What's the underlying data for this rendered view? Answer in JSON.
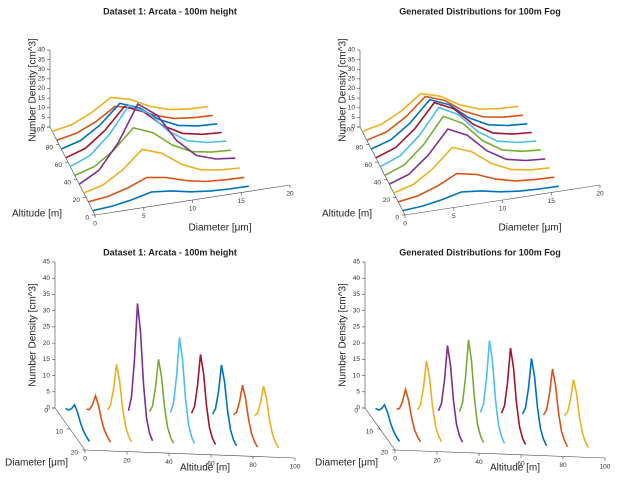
{
  "chart_data": [
    {
      "type": "waterfall3d",
      "view": "diameter-front",
      "title": "Dataset 1: Arcata - 100m height",
      "xlabel": "Diameter [μm]",
      "ylabel": "Altitude [m]",
      "zlabel": "Number Density [cm^3]",
      "xlim": [
        0,
        20
      ],
      "xticks": [
        0,
        5,
        10,
        15,
        20
      ],
      "ylim": [
        0,
        100
      ],
      "yticks": [
        0,
        20,
        40,
        60,
        80,
        100
      ],
      "zlim": [
        0,
        40
      ],
      "zticks": [
        0,
        5,
        10,
        15,
        20,
        25,
        30,
        35,
        40
      ],
      "x": [
        0,
        2,
        4,
        6,
        8,
        10,
        12,
        14,
        16
      ],
      "series": [
        {
          "color": "#0072BD",
          "altitude": 5,
          "values": [
            0,
            0.8,
            2.5,
            5,
            4,
            2,
            0.8,
            0.3,
            0.2
          ]
        },
        {
          "color": "#D95319",
          "altitude": 15,
          "values": [
            0,
            1.2,
            4,
            8,
            6.4,
            3.2,
            1.2,
            0.5,
            0.2
          ]
        },
        {
          "color": "#EDB120",
          "altitude": 25,
          "values": [
            0,
            2.7,
            9,
            18,
            14.4,
            7.2,
            2.7,
            1.1,
            0.5
          ]
        },
        {
          "color": "#7E2F8E",
          "altitude": 35,
          "values": [
            0,
            5.6,
            18.5,
            37,
            29.6,
            14.8,
            5.6,
            2.2,
            1.1
          ]
        },
        {
          "color": "#77AC30",
          "altitude": 45,
          "values": [
            0,
            3,
            10,
            20,
            16,
            8,
            3,
            1.2,
            0.6
          ]
        },
        {
          "color": "#4DBEEE",
          "altitude": 55,
          "values": [
            0,
            4.1,
            13.5,
            27,
            21.6,
            10.8,
            4.1,
            1.6,
            0.8
          ]
        },
        {
          "color": "#A2142F",
          "altitude": 65,
          "values": [
            0,
            3.3,
            11,
            22,
            17.6,
            8.8,
            3.3,
            1.3,
            0.7
          ]
        },
        {
          "color": "#0072BD",
          "altitude": 75,
          "values": [
            0,
            2.9,
            9.5,
            19,
            15.2,
            7.6,
            2.9,
            1.1,
            0.6
          ]
        },
        {
          "color": "#D95319",
          "altitude": 85,
          "values": [
            0,
            2,
            6.5,
            13,
            10.4,
            5.2,
            2,
            0.8,
            0.4
          ]
        },
        {
          "color": "#EDB120",
          "altitude": 95,
          "values": [
            0,
            2,
            6.5,
            13,
            10.4,
            5.2,
            2,
            0.8,
            0.4
          ]
        }
      ]
    },
    {
      "type": "waterfall3d",
      "view": "diameter-front",
      "title": "Generated Distributions for 100m Fog",
      "xlabel": "Diameter [μm]",
      "ylabel": "Altitude [m]",
      "zlabel": "Number Density [cm^3]",
      "xlim": [
        0,
        20
      ],
      "xticks": [
        0,
        5,
        10,
        15,
        20
      ],
      "ylim": [
        0,
        100
      ],
      "yticks": [
        0,
        20,
        40,
        60,
        80,
        100
      ],
      "zlim": [
        0,
        40
      ],
      "zticks": [
        0,
        5,
        10,
        15,
        20,
        25,
        30,
        35,
        40
      ],
      "x": [
        0,
        2,
        4,
        6,
        8,
        10,
        12,
        14,
        16
      ],
      "series": [
        {
          "color": "#0072BD",
          "altitude": 5,
          "values": [
            0,
            0.8,
            2.5,
            5,
            4,
            2,
            0.8,
            0.3,
            0.2
          ]
        },
        {
          "color": "#D95319",
          "altitude": 15,
          "values": [
            0,
            1.5,
            5,
            10,
            8,
            4,
            1.5,
            0.6,
            0.3
          ]
        },
        {
          "color": "#EDB120",
          "altitude": 25,
          "values": [
            0,
            2.9,
            9.5,
            19,
            15.2,
            7.6,
            2.9,
            1.1,
            0.6
          ]
        },
        {
          "color": "#7E2F8E",
          "altitude": 35,
          "values": [
            0,
            3.6,
            12,
            24,
            19.2,
            9.6,
            3.6,
            1.4,
            0.7
          ]
        },
        {
          "color": "#77AC30",
          "altitude": 45,
          "values": [
            0,
            3.9,
            13,
            26,
            20.8,
            10.4,
            3.9,
            1.6,
            0.8
          ]
        },
        {
          "color": "#4DBEEE",
          "altitude": 55,
          "values": [
            0,
            3.9,
            13,
            26,
            20.8,
            10.4,
            3.9,
            1.6,
            0.8
          ]
        },
        {
          "color": "#A2142F",
          "altitude": 65,
          "values": [
            0,
            3.6,
            12,
            24,
            19.2,
            9.6,
            3.6,
            1.4,
            0.7
          ]
        },
        {
          "color": "#0072BD",
          "altitude": 75,
          "values": [
            0,
            3.2,
            10.5,
            21,
            16.8,
            8.4,
            3.2,
            1.3,
            0.6
          ]
        },
        {
          "color": "#D95319",
          "altitude": 85,
          "values": [
            0,
            2.7,
            9,
            18,
            14.4,
            7.2,
            2.7,
            1.1,
            0.5
          ]
        },
        {
          "color": "#EDB120",
          "altitude": 95,
          "values": [
            0,
            2.3,
            7.5,
            15,
            12,
            6,
            2.3,
            0.9,
            0.5
          ]
        }
      ]
    },
    {
      "type": "waterfall3d",
      "view": "altitude-front",
      "title": "Dataset 1: Arcata - 100m height",
      "xlabel": "Diameter [μm]",
      "ylabel": "Altitude [m]",
      "zlabel": "Number Density [cm^3]",
      "xlim": [
        0,
        20
      ],
      "xticks": [
        0,
        10,
        20
      ],
      "ylim": [
        0,
        100
      ],
      "yticks": [
        0,
        20,
        40,
        60,
        80,
        100
      ],
      "zlim": [
        0,
        45
      ],
      "zticks": [
        0,
        5,
        10,
        15,
        20,
        25,
        30,
        35,
        40,
        45
      ],
      "x": [
        0,
        2,
        4,
        6,
        8,
        10,
        12,
        14,
        16
      ],
      "series": [
        {
          "color": "#0072BD",
          "altitude": 5,
          "values": [
            0,
            0.8,
            2.5,
            5,
            4,
            2,
            0.8,
            0.3,
            0.2
          ]
        },
        {
          "color": "#D95319",
          "altitude": 15,
          "values": [
            0,
            1.2,
            4,
            8,
            6.4,
            3.2,
            1.2,
            0.5,
            0.2
          ]
        },
        {
          "color": "#EDB120",
          "altitude": 25,
          "values": [
            0,
            2.7,
            9,
            18,
            14.4,
            7.2,
            2.7,
            1.1,
            0.5
          ]
        },
        {
          "color": "#7E2F8E",
          "altitude": 35,
          "values": [
            0,
            5.6,
            18.5,
            37,
            29.6,
            14.8,
            5.6,
            2.2,
            1.1
          ]
        },
        {
          "color": "#77AC30",
          "altitude": 45,
          "values": [
            0,
            3,
            10,
            20,
            16,
            8,
            3,
            1.2,
            0.6
          ]
        },
        {
          "color": "#4DBEEE",
          "altitude": 55,
          "values": [
            0,
            4.1,
            13.5,
            27,
            21.6,
            10.8,
            4.1,
            1.6,
            0.8
          ]
        },
        {
          "color": "#A2142F",
          "altitude": 65,
          "values": [
            0,
            3.3,
            11,
            22,
            17.6,
            8.8,
            3.3,
            1.3,
            0.7
          ]
        },
        {
          "color": "#0072BD",
          "altitude": 75,
          "values": [
            0,
            2.9,
            9.5,
            19,
            15.2,
            7.6,
            2.9,
            1.1,
            0.6
          ]
        },
        {
          "color": "#D95319",
          "altitude": 85,
          "values": [
            0,
            2,
            6.5,
            13,
            10.4,
            5.2,
            2,
            0.8,
            0.4
          ]
        },
        {
          "color": "#EDB120",
          "altitude": 95,
          "values": [
            0,
            2,
            6.5,
            13,
            10.4,
            5.2,
            2,
            0.8,
            0.4
          ]
        }
      ]
    },
    {
      "type": "waterfall3d",
      "view": "altitude-front",
      "title": "Generated Distributions for 100m Fog",
      "xlabel": "Diameter [μm]",
      "ylabel": "Altitude [m]",
      "zlabel": "Number Density [cm^3]",
      "xlim": [
        0,
        20
      ],
      "xticks": [
        0,
        10,
        20
      ],
      "ylim": [
        0,
        100
      ],
      "yticks": [
        0,
        20,
        40,
        60,
        80,
        100
      ],
      "zlim": [
        0,
        45
      ],
      "zticks": [
        0,
        5,
        10,
        15,
        20,
        25,
        30,
        35,
        40,
        45
      ],
      "x": [
        0,
        2,
        4,
        6,
        8,
        10,
        12,
        14,
        16
      ],
      "series": [
        {
          "color": "#0072BD",
          "altitude": 5,
          "values": [
            0,
            0.8,
            2.5,
            5,
            4,
            2,
            0.8,
            0.3,
            0.2
          ]
        },
        {
          "color": "#D95319",
          "altitude": 15,
          "values": [
            0,
            1.5,
            5,
            10,
            8,
            4,
            1.5,
            0.6,
            0.3
          ]
        },
        {
          "color": "#EDB120",
          "altitude": 25,
          "values": [
            0,
            2.9,
            9.5,
            19,
            15.2,
            7.6,
            2.9,
            1.1,
            0.6
          ]
        },
        {
          "color": "#7E2F8E",
          "altitude": 35,
          "values": [
            0,
            3.6,
            12,
            24,
            19.2,
            9.6,
            3.6,
            1.4,
            0.7
          ]
        },
        {
          "color": "#77AC30",
          "altitude": 45,
          "values": [
            0,
            3.9,
            13,
            26,
            20.8,
            10.4,
            3.9,
            1.6,
            0.8
          ]
        },
        {
          "color": "#4DBEEE",
          "altitude": 55,
          "values": [
            0,
            3.9,
            13,
            26,
            20.8,
            10.4,
            3.9,
            1.6,
            0.8
          ]
        },
        {
          "color": "#A2142F",
          "altitude": 65,
          "values": [
            0,
            3.6,
            12,
            24,
            19.2,
            9.6,
            3.6,
            1.4,
            0.7
          ]
        },
        {
          "color": "#0072BD",
          "altitude": 75,
          "values": [
            0,
            3.2,
            10.5,
            21,
            16.8,
            8.4,
            3.2,
            1.3,
            0.6
          ]
        },
        {
          "color": "#D95319",
          "altitude": 85,
          "values": [
            0,
            2.7,
            9,
            18,
            14.4,
            7.2,
            2.7,
            1.1,
            0.5
          ]
        },
        {
          "color": "#EDB120",
          "altitude": 95,
          "values": [
            0,
            2.3,
            7.5,
            15,
            12,
            6,
            2.3,
            0.9,
            0.5
          ]
        }
      ]
    }
  ]
}
